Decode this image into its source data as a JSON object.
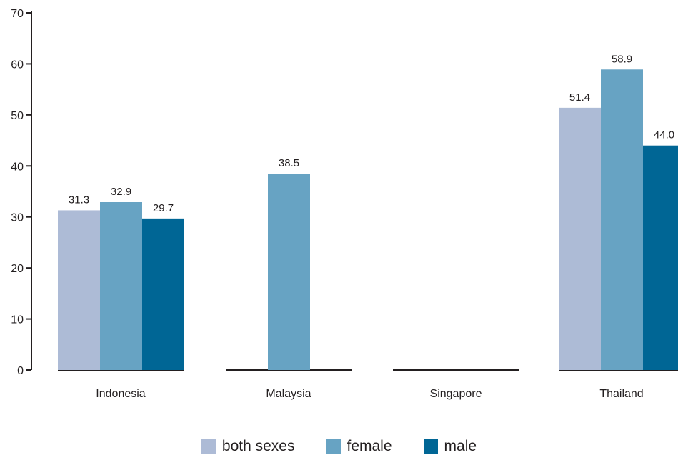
{
  "chart_data": {
    "type": "bar",
    "title": "",
    "xlabel": "",
    "ylabel": "",
    "ylim": [
      0,
      70
    ],
    "yticks": [
      0,
      10,
      20,
      30,
      40,
      50,
      60,
      70
    ],
    "categories": [
      "Indonesia",
      "Malaysia",
      "Singapore",
      "Thailand"
    ],
    "series": [
      {
        "name": "both sexes",
        "color": "#adbbd6",
        "values": [
          31.3,
          null,
          null,
          51.4
        ],
        "labels": [
          "31.3",
          "",
          "",
          "51.4"
        ]
      },
      {
        "name": "female",
        "color": "#67a3c3",
        "values": [
          32.9,
          38.5,
          null,
          58.9
        ],
        "labels": [
          "32.9",
          "38.5",
          "",
          "58.9"
        ]
      },
      {
        "name": "male",
        "color": "#006695",
        "values": [
          29.7,
          null,
          null,
          44.0
        ],
        "labels": [
          "29.7",
          "",
          "",
          "44.0"
        ]
      }
    ],
    "grid": false,
    "legend_position": "bottom"
  }
}
